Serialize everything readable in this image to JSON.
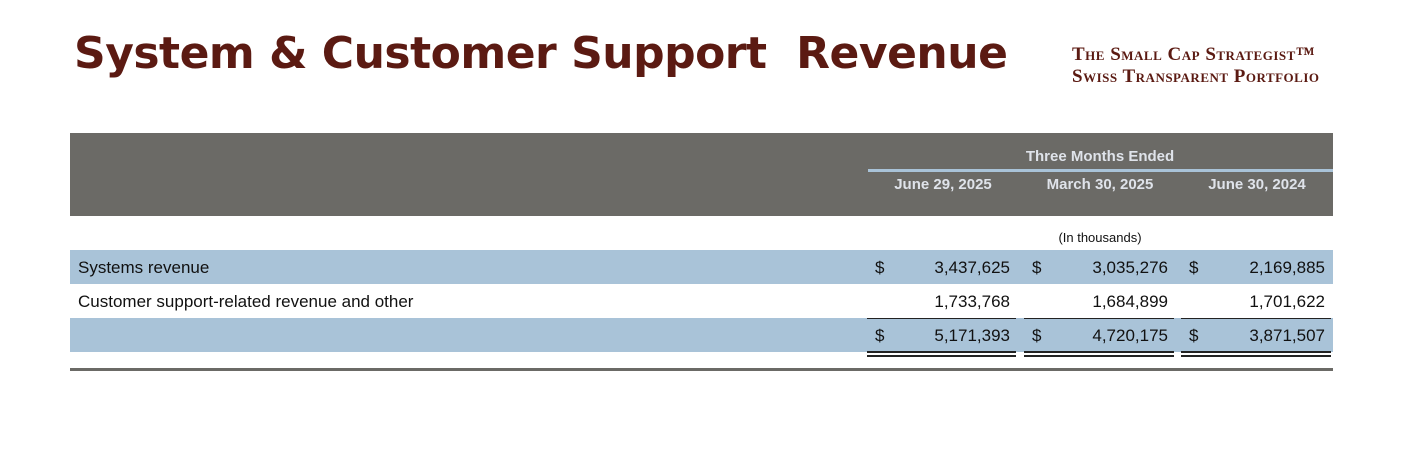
{
  "header": {
    "title": "System & Customer Support  Revenue",
    "brand": [
      "The Small Cap Strategist™",
      "Swiss Transparent Portfolio"
    ]
  },
  "table": {
    "group_header": "Three Months Ended",
    "columns": [
      "June 29, 2025",
      "March 30, 2025",
      "June 30, 2024"
    ],
    "units": "(In thousands)",
    "rows": [
      {
        "label": "Systems revenue",
        "cells": [
          {
            "currency": "$",
            "value": "3,437,625"
          },
          {
            "currency": "$",
            "value": "3,035,276"
          },
          {
            "currency": "$",
            "value": "2,169,885"
          }
        ]
      },
      {
        "label": "Customer support-related revenue and other",
        "cells": [
          {
            "value": "1,733,768"
          },
          {
            "value": "1,684,899"
          },
          {
            "value": "1,701,622"
          }
        ]
      },
      {
        "cells": [
          {
            "currency": "$",
            "value": "5,171,393"
          },
          {
            "currency": "$",
            "value": "4,720,175"
          },
          {
            "currency": "$",
            "value": "3,871,507"
          }
        ]
      }
    ]
  }
}
